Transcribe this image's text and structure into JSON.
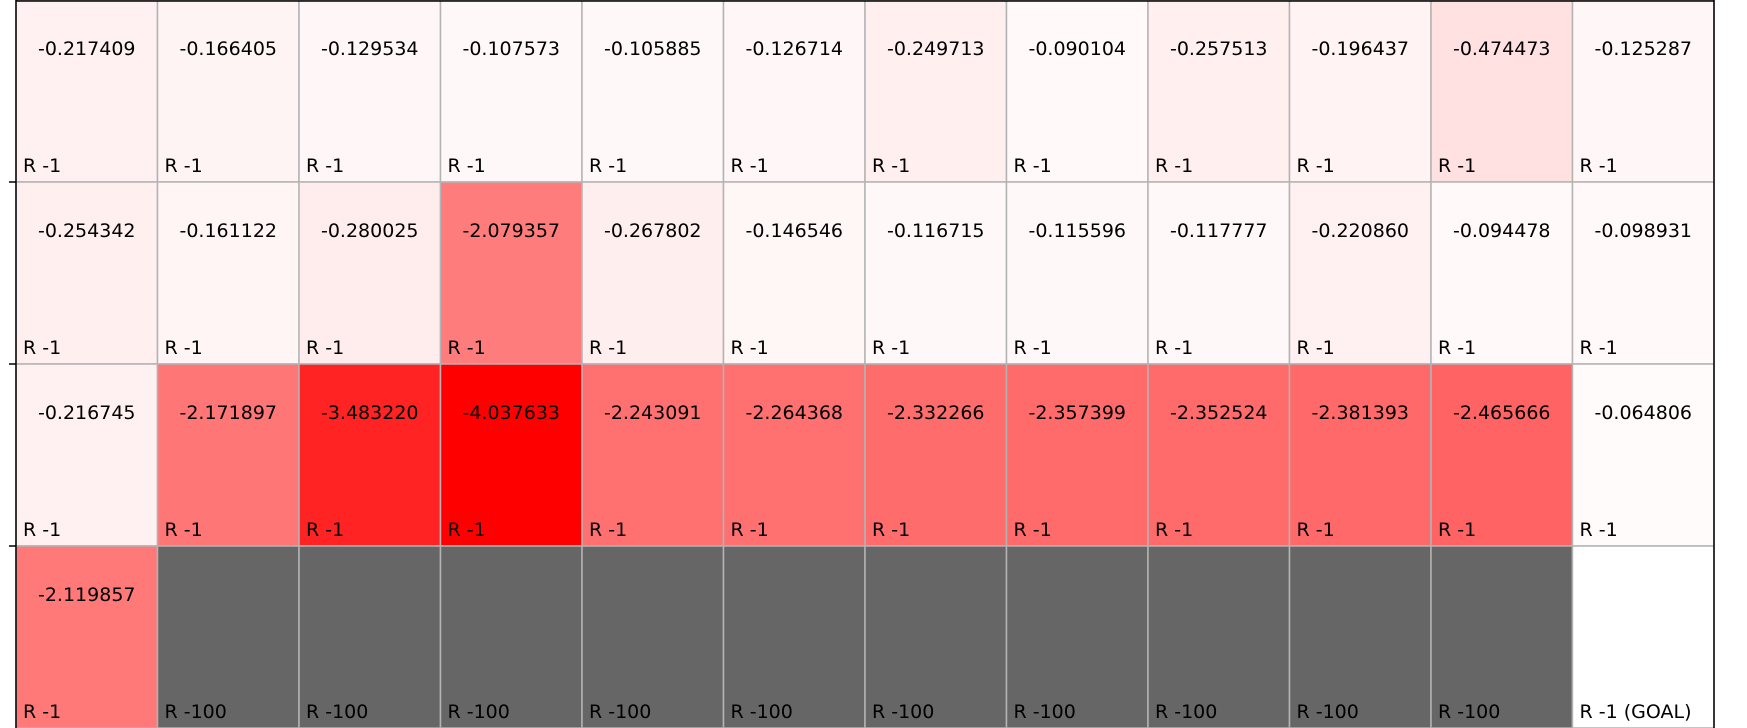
{
  "grid": {
    "rows": 4,
    "cols": 12,
    "colors": {
      "max_red": "#ff0000",
      "cliff": "#666666",
      "goal": "#ffffff",
      "border": "#000000",
      "cell_line": "#b3b3b3"
    },
    "values": [
      [
        "-0.217409",
        "-0.166405",
        "-0.129534",
        "-0.107573",
        "-0.105885",
        "-0.126714",
        "-0.249713",
        "-0.090104",
        "-0.257513",
        "-0.196437",
        "-0.474473",
        "-0.125287"
      ],
      [
        "-0.254342",
        "-0.161122",
        "-0.280025",
        "-2.079357",
        "-0.267802",
        "-0.146546",
        "-0.116715",
        "-0.115596",
        "-0.117777",
        "-0.220860",
        "-0.094478",
        "-0.098931"
      ],
      [
        "-0.216745",
        "-2.171897",
        "-3.483220",
        "-4.037633",
        "-2.243091",
        "-2.264368",
        "-2.332266",
        "-2.357399",
        "-2.352524",
        "-2.381393",
        "-2.465666",
        "-0.064806"
      ],
      [
        "-2.119857",
        "",
        "",
        "",
        "",
        "",
        "",
        "",
        "",
        "",
        "",
        ""
      ]
    ],
    "rewards": [
      [
        "R -1",
        "R -1",
        "R -1",
        "R -1",
        "R -1",
        "R -1",
        "R -1",
        "R -1",
        "R -1",
        "R -1",
        "R -1",
        "R -1"
      ],
      [
        "R -1",
        "R -1",
        "R -1",
        "R -1",
        "R -1",
        "R -1",
        "R -1",
        "R -1",
        "R -1",
        "R -1",
        "R -1",
        "R -1"
      ],
      [
        "R -1",
        "R -1",
        "R -1",
        "R -1",
        "R -1",
        "R -1",
        "R -1",
        "R -1",
        "R -1",
        "R -1",
        "R -1",
        "R -1"
      ],
      [
        "R -1",
        "R -100",
        "R -100",
        "R -100",
        "R -100",
        "R -100",
        "R -100",
        "R -100",
        "R -100",
        "R -100",
        "R -100",
        "R -1 (GOAL)"
      ]
    ],
    "cell_types": [
      [
        "normal",
        "normal",
        "normal",
        "normal",
        "normal",
        "normal",
        "normal",
        "normal",
        "normal",
        "normal",
        "normal",
        "normal"
      ],
      [
        "normal",
        "normal",
        "normal",
        "normal",
        "normal",
        "normal",
        "normal",
        "normal",
        "normal",
        "normal",
        "normal",
        "normal"
      ],
      [
        "normal",
        "normal",
        "normal",
        "normal",
        "normal",
        "normal",
        "normal",
        "normal",
        "normal",
        "normal",
        "normal",
        "normal"
      ],
      [
        "normal",
        "cliff",
        "cliff",
        "cliff",
        "cliff",
        "cliff",
        "cliff",
        "cliff",
        "cliff",
        "cliff",
        "cliff",
        "goal"
      ]
    ]
  }
}
